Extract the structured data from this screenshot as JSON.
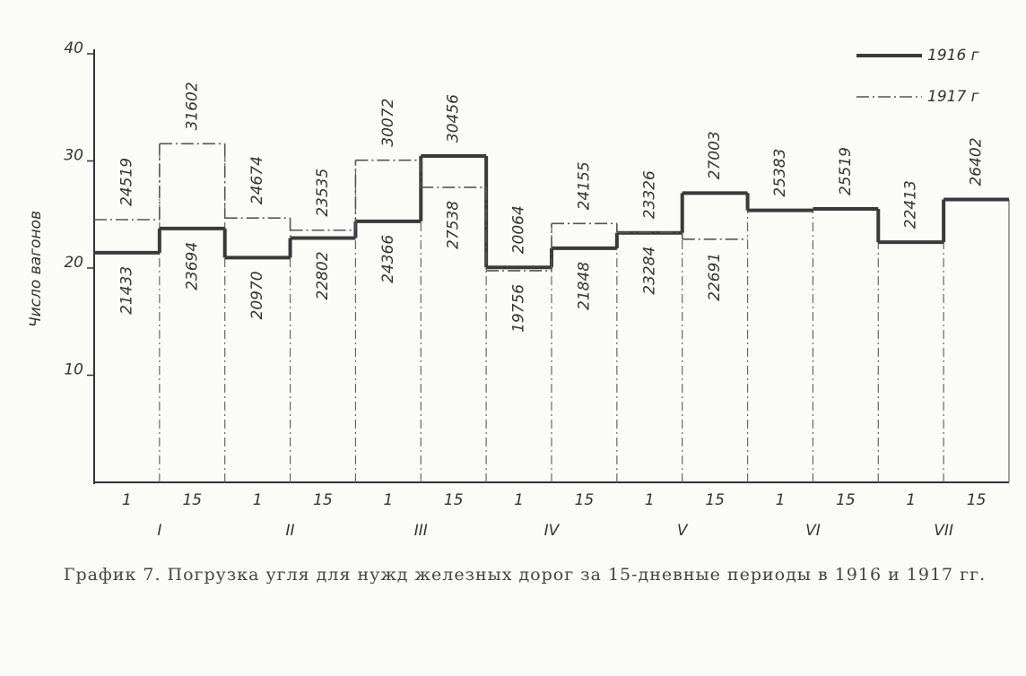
{
  "chart_data": {
    "type": "step",
    "title": "График 7. Погрузка угля для нужд железных дорог за 15-дневные периоды в 1916 и 1917 гг.",
    "y_label": "Число вагонов",
    "categories": [
      "1",
      "15",
      "1",
      "15",
      "1",
      "15",
      "1",
      "15",
      "1",
      "15",
      "1",
      "15",
      "1",
      "15"
    ],
    "groups": [
      "I",
      "II",
      "III",
      "IV",
      "V",
      "VI",
      "VII"
    ],
    "series": [
      {
        "name": "1916 г",
        "color": "#3a3a3a",
        "style": "solid",
        "values": [
          21.433,
          23.694,
          20.97,
          22.802,
          24.366,
          30.456,
          20.064,
          21.848,
          23.284,
          27.003,
          25.383,
          25.519,
          22.413,
          26.402
        ],
        "value_labels": [
          "21433",
          "23694",
          "20970",
          "22802",
          "24366",
          "30456",
          "20064",
          "21848",
          "23284",
          "27003",
          "25383",
          "25519",
          "22413",
          "26402"
        ]
      },
      {
        "name": "1917 г",
        "color": "#555555",
        "style": "dashdot",
        "values": [
          24.519,
          31.602,
          24.674,
          23.535,
          30.072,
          27.538,
          19.756,
          24.155,
          23.326,
          22.691,
          null,
          null,
          null,
          null
        ],
        "value_labels": [
          "24519",
          "31602",
          "24674",
          "23535",
          "30072",
          "27538",
          "19756",
          "24155",
          "23326",
          "22691",
          null,
          null,
          null,
          null
        ]
      }
    ],
    "ylim": [
      0,
      40
    ],
    "yticks": [
      10,
      20,
      30,
      40
    ],
    "legend": "top-right"
  }
}
